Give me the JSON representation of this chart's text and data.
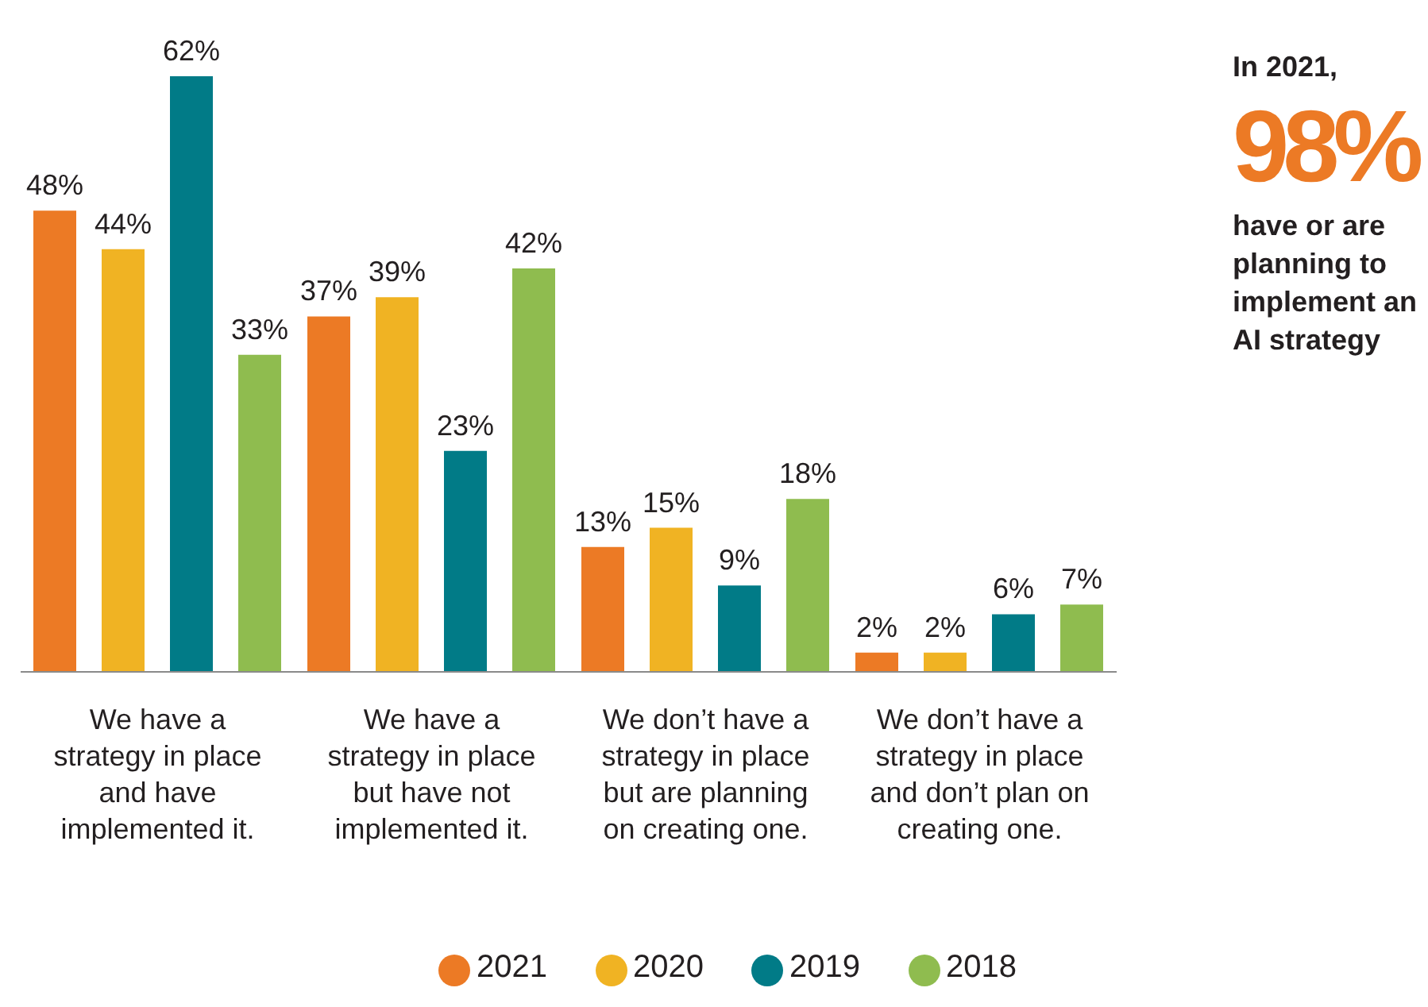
{
  "chart_data": {
    "type": "bar",
    "categories": [
      "We have a strategy in place and have implemented it.",
      "We have a strategy in place but have not implemented it.",
      "We don’t have a strategy in place but are planning on creating one.",
      "We don’t have a strategy in place and don’t plan on creating one."
    ],
    "series": [
      {
        "name": "2021",
        "color": "#ec7a25",
        "values": [
          48,
          37,
          13,
          2
        ],
        "value_labels": [
          "48%",
          "37%",
          "13%",
          "2%"
        ]
      },
      {
        "name": "2020",
        "color": "#f0b323",
        "values": [
          44,
          39,
          15,
          2
        ],
        "value_labels": [
          "44%",
          "39%",
          "15%",
          "2%"
        ]
      },
      {
        "name": "2019",
        "color": "#017b87",
        "values": [
          62,
          23,
          9,
          6
        ],
        "value_labels": [
          "62%",
          "23%",
          "9%",
          "6%"
        ]
      },
      {
        "name": "2018",
        "color": "#8fbc4f",
        "values": [
          33,
          42,
          18,
          7
        ],
        "value_labels": [
          "33%",
          "42%",
          "18%",
          "7%"
        ]
      }
    ],
    "legend": "bottom",
    "grid": false,
    "annotations": [
      "In 2021,",
      "98%",
      "have or are planning to implement an AI strategy"
    ]
  }
}
